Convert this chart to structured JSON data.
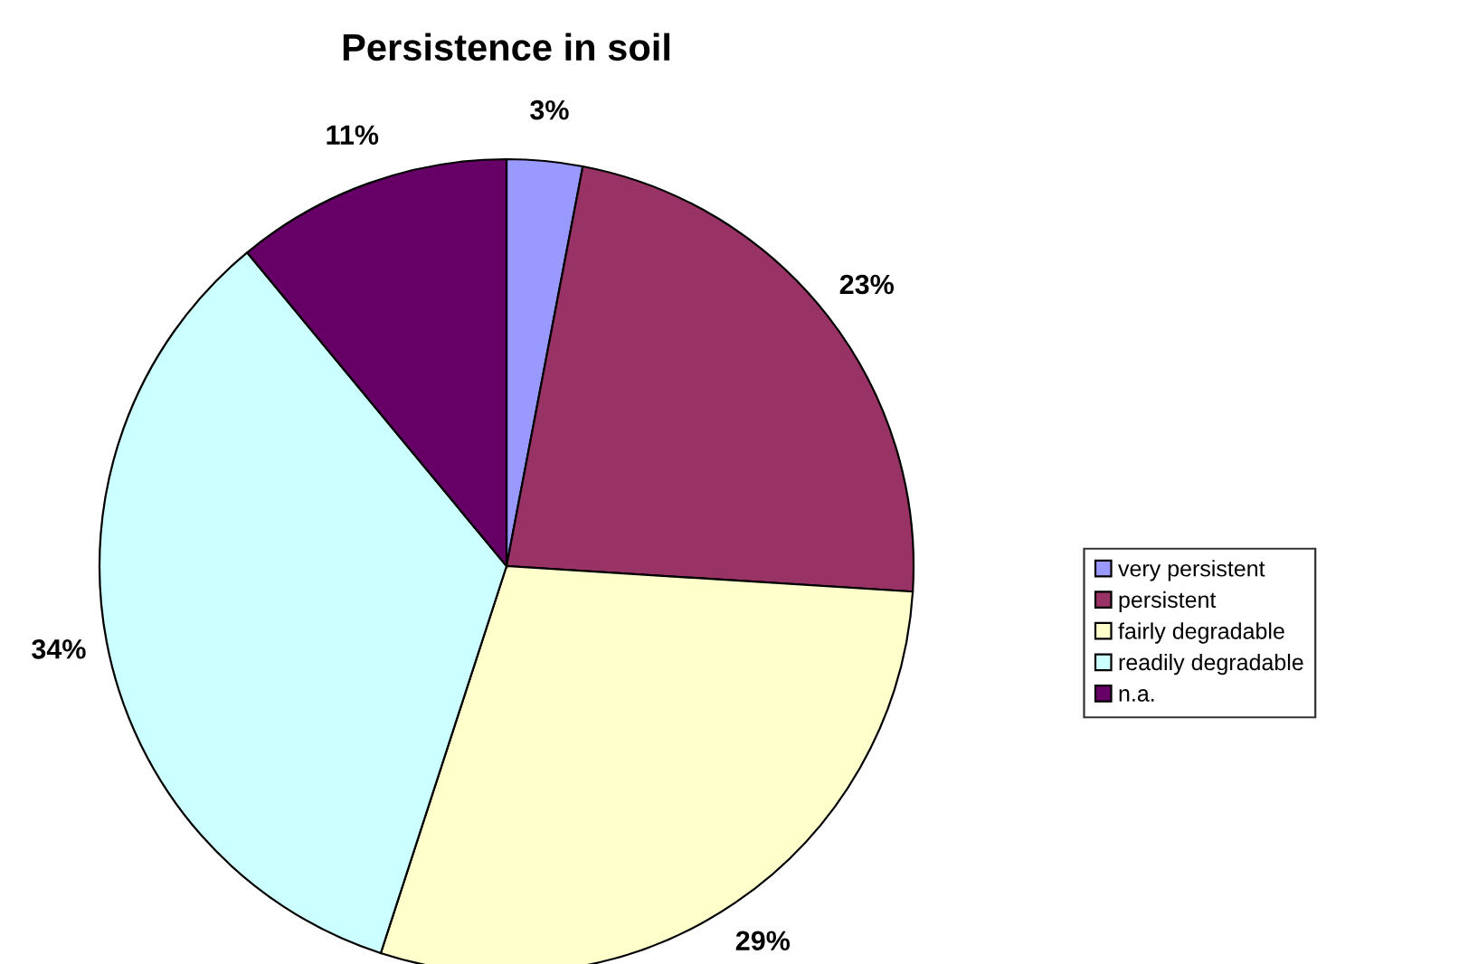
{
  "chart_data": {
    "type": "pie",
    "title": "Persistence in soil",
    "categories": [
      "very persistent",
      "persistent",
      "fairly degradable",
      "readily degradable",
      "n.a."
    ],
    "values": [
      3,
      23,
      29,
      34,
      11
    ],
    "colors": [
      "#9999ff",
      "#993366",
      "#ffffcc",
      "#ccffff",
      "#660066"
    ],
    "value_labels": [
      "3%",
      "23%",
      "29%",
      "34%",
      "11%"
    ],
    "legend": "right"
  }
}
